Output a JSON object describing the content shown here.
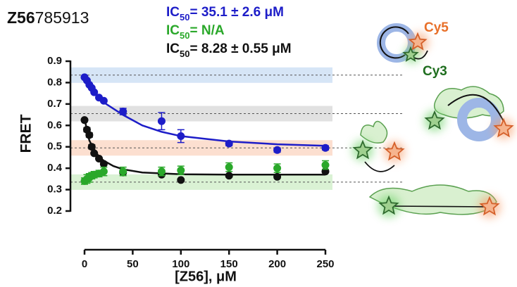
{
  "chart_data": {
    "type": "scatter",
    "title_bold": "Z56",
    "title_rest": "785913",
    "annotations": [
      {
        "prefix": "IC",
        "sub": "50",
        "text": "= 35.1 ± 2.6 μM",
        "color": "#1d1dc8"
      },
      {
        "prefix": "IC",
        "sub": "50",
        "text": "= N/A",
        "color": "#2aa82a"
      },
      {
        "prefix": "IC",
        "sub": "50",
        "text": "= 8.28 ± 0.55 μM",
        "color": "#111111"
      }
    ],
    "labels": {
      "cy5": "Cy5",
      "cy3": "Cy3"
    },
    "x_label": "[Z56], μM",
    "y_label": "FRET",
    "xlim": [
      0,
      250
    ],
    "xticks": [
      0,
      50,
      100,
      150,
      200,
      250
    ],
    "ylim": [
      0.2,
      0.9
    ],
    "yticks": [
      0.2,
      0.3,
      0.4,
      0.5,
      0.6,
      0.7,
      0.8,
      0.9
    ],
    "bands": [
      {
        "value": 0.835,
        "color": "#cfe0f5"
      },
      {
        "value": 0.655,
        "color": "#dcdcdc"
      },
      {
        "value": 0.495,
        "color": "#fbd9c8"
      },
      {
        "value": 0.335,
        "color": "#d3f0cd"
      }
    ],
    "series": [
      {
        "color": "#1d1dc8",
        "x": [
          0,
          2.5,
          5,
          7.5,
          10,
          15,
          20,
          40,
          80,
          100,
          150,
          200,
          250
        ],
        "values": [
          0.825,
          0.81,
          0.79,
          0.775,
          0.755,
          0.73,
          0.715,
          0.665,
          0.62,
          0.55,
          0.515,
          0.485,
          0.495
        ],
        "errors": [
          0.005,
          0.005,
          0.005,
          0.005,
          0.005,
          0.005,
          0.005,
          0.015,
          0.04,
          0.03,
          0.01,
          0.01,
          0.01
        ],
        "fit_x": [
          0,
          5,
          10,
          20,
          40,
          60,
          80,
          100,
          150,
          200,
          250
        ],
        "fit_values": [
          0.83,
          0.79,
          0.755,
          0.707,
          0.649,
          0.6,
          0.57,
          0.55,
          0.525,
          0.512,
          0.505
        ]
      },
      {
        "color": "#111111",
        "x": [
          0,
          2.5,
          5,
          7.5,
          10,
          15,
          20,
          40,
          80,
          100,
          150,
          200,
          250
        ],
        "values": [
          0.625,
          0.58,
          0.555,
          0.5,
          0.47,
          0.445,
          0.42,
          0.38,
          0.37,
          0.345,
          0.365,
          0.36,
          0.385
        ],
        "errors": [
          0.005,
          0.01,
          0.01,
          0.01,
          0.005,
          0.005,
          0.005,
          0.005,
          0.005,
          0.005,
          0.005,
          0.005,
          0.005
        ],
        "fit_x": [
          0,
          5,
          10,
          15,
          20,
          30,
          40,
          60,
          100,
          150,
          250
        ],
        "fit_values": [
          0.63,
          0.53,
          0.485,
          0.455,
          0.435,
          0.41,
          0.395,
          0.38,
          0.372,
          0.37,
          0.37
        ]
      },
      {
        "color": "#2aa82a",
        "x": [
          0,
          2.5,
          5,
          7.5,
          10,
          15,
          20,
          40,
          80,
          100,
          150,
          200,
          250
        ],
        "values": [
          0.34,
          0.35,
          0.355,
          0.365,
          0.37,
          0.375,
          0.385,
          0.385,
          0.385,
          0.39,
          0.405,
          0.4,
          0.415
        ],
        "errors": [
          0.015,
          0.02,
          0.02,
          0.015,
          0.015,
          0.015,
          0.02,
          0.02,
          0.02,
          0.02,
          0.02,
          0.02,
          0.02
        ]
      }
    ]
  }
}
